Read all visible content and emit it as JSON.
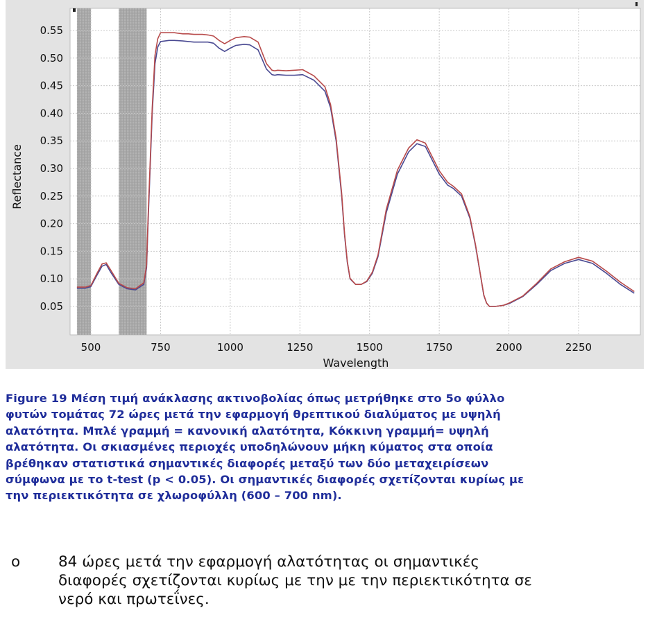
{
  "chart_data": {
    "type": "line",
    "xlabel": "Wavelength",
    "ylabel": "Reflectance",
    "xlim": [
      350,
      2500
    ],
    "ylim": [
      0.02,
      0.58
    ],
    "x_ticks": [
      500,
      750,
      1000,
      1250,
      1500,
      1750,
      2000,
      2250
    ],
    "x_tick_labels": [
      "500",
      "750",
      "1000",
      "1250",
      "1500",
      "1750",
      "2000",
      "2250"
    ],
    "y_ticks": [
      0.05,
      0.1,
      0.15,
      0.2,
      0.25,
      0.3,
      0.35,
      0.4,
      0.45,
      0.5,
      0.55
    ],
    "y_tick_labels": [
      "0.05",
      "0.10",
      "0.15",
      "0.20",
      "0.25",
      "0.30",
      "0.35",
      "0.40",
      "0.45",
      "0.50",
      "0.55"
    ],
    "grid": true,
    "shaded_regions": [
      [
        450,
        500
      ],
      [
        600,
        700
      ]
    ],
    "series": [
      {
        "color": "#4a4a92",
        "x": [
          450,
          480,
          500,
          520,
          540,
          555,
          570,
          600,
          630,
          660,
          690,
          700,
          705,
          720,
          730,
          740,
          750,
          780,
          800,
          830,
          850,
          870,
          900,
          920,
          940,
          960,
          980,
          1000,
          1020,
          1050,
          1070,
          1100,
          1130,
          1150,
          1160,
          1170,
          1200,
          1230,
          1260,
          1300,
          1340,
          1360,
          1380,
          1400,
          1410,
          1420,
          1430,
          1450,
          1470,
          1490,
          1510,
          1530,
          1560,
          1600,
          1640,
          1670,
          1700,
          1750,
          1780,
          1800,
          1830,
          1860,
          1880,
          1900,
          1910,
          1920,
          1930,
          1950,
          1980,
          2000,
          2050,
          2100,
          2150,
          2200,
          2250,
          2300,
          2350,
          2400,
          2450
        ],
        "y": [
          0.083,
          0.083,
          0.086,
          0.105,
          0.123,
          0.126,
          0.113,
          0.09,
          0.082,
          0.08,
          0.09,
          0.12,
          0.2,
          0.4,
          0.49,
          0.52,
          0.53,
          0.532,
          0.532,
          0.531,
          0.53,
          0.529,
          0.529,
          0.529,
          0.527,
          0.518,
          0.512,
          0.518,
          0.523,
          0.525,
          0.524,
          0.515,
          0.48,
          0.47,
          0.469,
          0.47,
          0.469,
          0.469,
          0.47,
          0.46,
          0.44,
          0.41,
          0.35,
          0.25,
          0.18,
          0.13,
          0.1,
          0.09,
          0.09,
          0.095,
          0.11,
          0.14,
          0.22,
          0.29,
          0.33,
          0.345,
          0.34,
          0.29,
          0.27,
          0.264,
          0.25,
          0.21,
          0.16,
          0.1,
          0.07,
          0.056,
          0.05,
          0.05,
          0.052,
          0.055,
          0.068,
          0.09,
          0.115,
          0.128,
          0.135,
          0.128,
          0.11,
          0.09,
          0.074
        ]
      },
      {
        "color": "#b84b4b",
        "x": [
          450,
          480,
          500,
          520,
          540,
          555,
          570,
          600,
          630,
          660,
          690,
          700,
          705,
          720,
          730,
          740,
          750,
          780,
          800,
          830,
          850,
          870,
          900,
          920,
          940,
          960,
          980,
          1000,
          1020,
          1050,
          1070,
          1100,
          1130,
          1150,
          1160,
          1170,
          1200,
          1230,
          1260,
          1300,
          1340,
          1360,
          1380,
          1400,
          1410,
          1420,
          1430,
          1450,
          1470,
          1490,
          1510,
          1530,
          1560,
          1600,
          1640,
          1670,
          1700,
          1750,
          1780,
          1800,
          1830,
          1860,
          1880,
          1900,
          1910,
          1920,
          1930,
          1950,
          1980,
          2000,
          2050,
          2100,
          2150,
          2200,
          2250,
          2300,
          2350,
          2400,
          2450
        ],
        "y": [
          0.085,
          0.085,
          0.088,
          0.108,
          0.127,
          0.129,
          0.117,
          0.092,
          0.084,
          0.082,
          0.093,
          0.125,
          0.21,
          0.41,
          0.505,
          0.535,
          0.546,
          0.546,
          0.546,
          0.544,
          0.544,
          0.543,
          0.543,
          0.542,
          0.54,
          0.532,
          0.526,
          0.532,
          0.537,
          0.539,
          0.538,
          0.529,
          0.49,
          0.478,
          0.477,
          0.478,
          0.477,
          0.478,
          0.479,
          0.468,
          0.448,
          0.416,
          0.355,
          0.255,
          0.183,
          0.132,
          0.101,
          0.09,
          0.09,
          0.096,
          0.112,
          0.143,
          0.226,
          0.297,
          0.337,
          0.352,
          0.346,
          0.296,
          0.275,
          0.268,
          0.254,
          0.213,
          0.162,
          0.101,
          0.071,
          0.056,
          0.05,
          0.05,
          0.052,
          0.056,
          0.069,
          0.092,
          0.118,
          0.131,
          0.139,
          0.132,
          0.114,
          0.094,
          0.077
        ]
      }
    ]
  },
  "caption": {
    "lines": [
      "Figure 19 Μέση  τιμή  ανάκλασης  ακτινοβολίας  όπως  μετρήθηκε  στο 5ο φύλλο",
      "φυτών τομάτας 72 ώρες μετά την εφαρμογή θρεπτικού διαλύματος με υψηλή",
      "αλατότητα.  Μπλέ  γραμμή =  κανονική  αλατότητα,  Κόκκινη  γραμμή= υψηλή",
      "αλατότητα. Οι σκιασμένες περιοχές υποδηλώνουν μήκη  κύματος στα οποία",
      "βρέθηκαν  στατιστικά  σημαντικές  διαφορές  μεταξύ  των  δύο μεταχειρίσεων",
      "σύμφωνα  με  το  t-test (p  < 0.05).  Οι  σημαντικές  διαφορές σχετίζονται  κυρίως με",
      "την  περιεκτικότητα  σε  χλωροφύλλη (600 – 700 nm)."
    ]
  },
  "bullet": {
    "marker": "o",
    "lines": [
      "84 ώρες μετά την εφαρμογή αλατότητας οι σημαντικές",
      "διαφορές σχετίζονται κυρίως με την με την περιεκτικότητα σε",
      "νερό και πρωτεΐνες."
    ]
  }
}
